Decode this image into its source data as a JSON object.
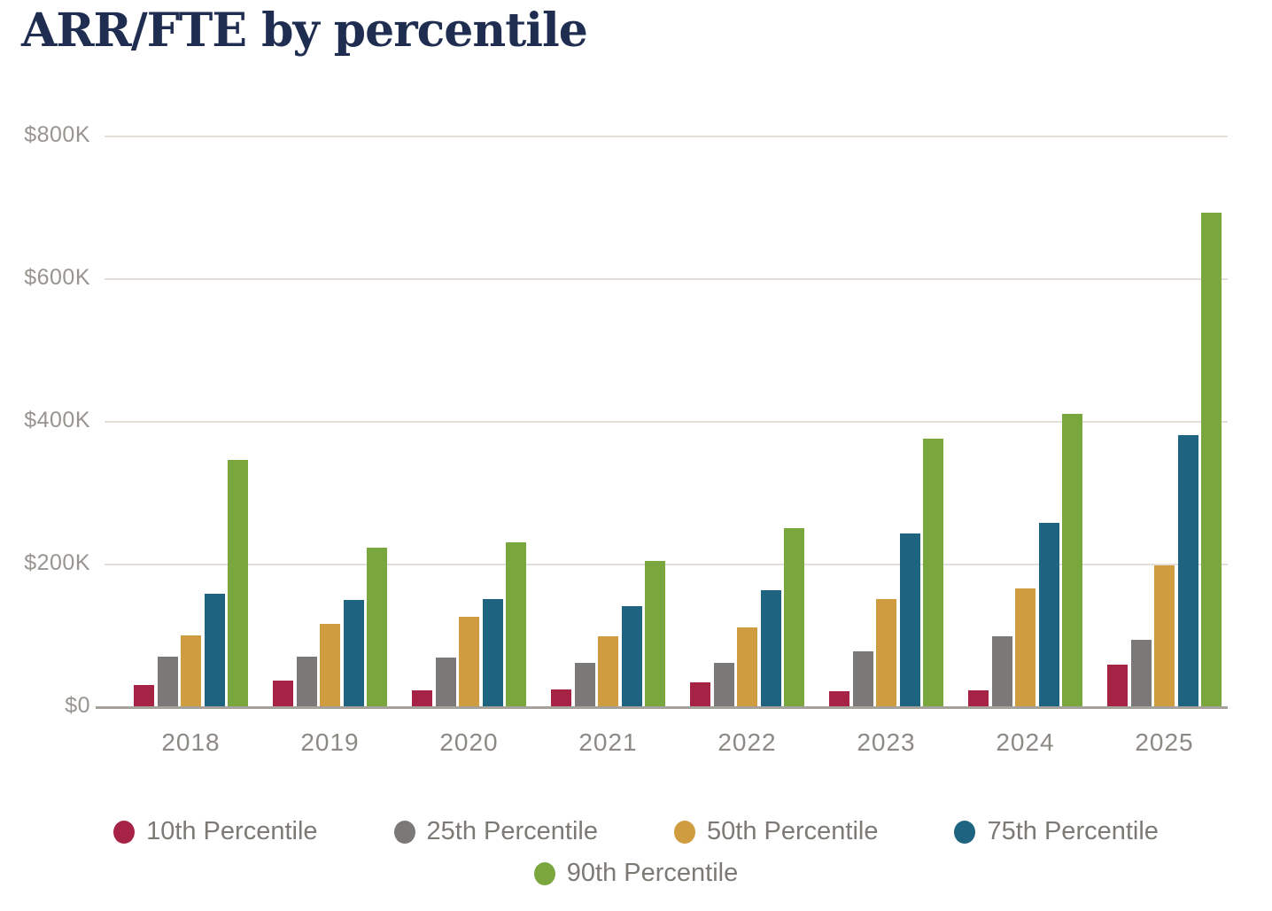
{
  "title": "ARR/FTE by percentile",
  "chart_data": {
    "type": "bar",
    "title": "ARR/FTE by percentile",
    "unit": "thousand USD (ARR per FTE)",
    "categories": [
      "2018",
      "2019",
      "2020",
      "2021",
      "2022",
      "2023",
      "2024",
      "2025"
    ],
    "series": [
      {
        "name": "10th Percentile",
        "color": "#a62345",
        "values": [
          30,
          36,
          22,
          24,
          33,
          21,
          22,
          58
        ]
      },
      {
        "name": "25th Percentile",
        "color": "#7b7977",
        "values": [
          70,
          70,
          68,
          61,
          61,
          77,
          98,
          93
        ]
      },
      {
        "name": "50th Percentile",
        "color": "#d09c40",
        "values": [
          100,
          115,
          125,
          98,
          110,
          150,
          165,
          198
        ]
      },
      {
        "name": "75th Percentile",
        "color": "#1e6480",
        "values": [
          158,
          149,
          150,
          140,
          163,
          242,
          257,
          380
        ]
      },
      {
        "name": "90th Percentile",
        "color": "#7aa63e",
        "values": [
          345,
          222,
          230,
          204,
          250,
          375,
          410,
          692
        ]
      }
    ],
    "ylim": [
      0,
      800
    ],
    "yticks": [
      {
        "value": 0,
        "label": "$0"
      },
      {
        "value": 200,
        "label": "$200K"
      },
      {
        "value": 400,
        "label": "$400K"
      },
      {
        "value": 600,
        "label": "$600K"
      },
      {
        "value": 800,
        "label": "$800K"
      }
    ],
    "xlabel": "",
    "ylabel": "",
    "grid": "horizontal",
    "legend_position": "bottom",
    "legend_rows": [
      4,
      1
    ]
  }
}
